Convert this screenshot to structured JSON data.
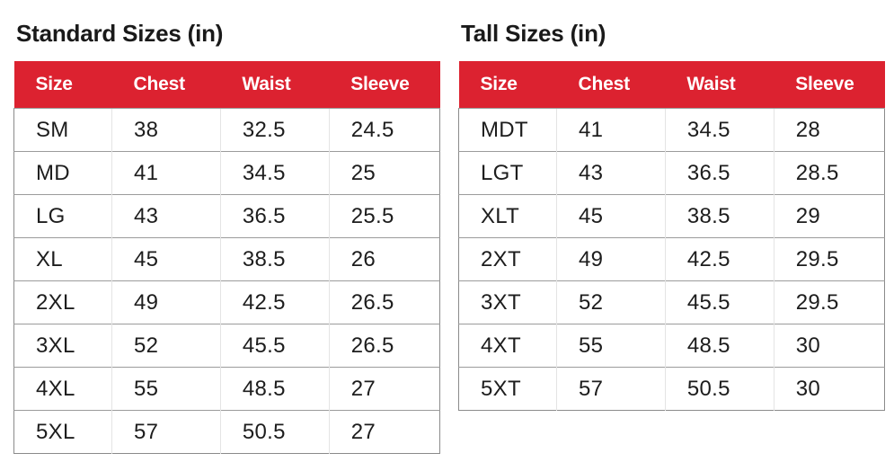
{
  "accent_color": "#dc2230",
  "header_text_color": "#ffffff",
  "body_text_color": "#1d1d1d",
  "chart_data": [
    {
      "type": "table",
      "title": "Standard Sizes (in)",
      "columns": [
        "Size",
        "Chest",
        "Waist",
        "Sleeve"
      ],
      "rows": [
        [
          "SM",
          "38",
          "32.5",
          "24.5"
        ],
        [
          "MD",
          "41",
          "34.5",
          "25"
        ],
        [
          "LG",
          "43",
          "36.5",
          "25.5"
        ],
        [
          "XL",
          "45",
          "38.5",
          "26"
        ],
        [
          "2XL",
          "49",
          "42.5",
          "26.5"
        ],
        [
          "3XL",
          "52",
          "45.5",
          "26.5"
        ],
        [
          "4XL",
          "55",
          "48.5",
          "27"
        ],
        [
          "5XL",
          "57",
          "50.5",
          "27"
        ]
      ]
    },
    {
      "type": "table",
      "title": "Tall Sizes (in)",
      "columns": [
        "Size",
        "Chest",
        "Waist",
        "Sleeve"
      ],
      "rows": [
        [
          "MDT",
          "41",
          "34.5",
          "28"
        ],
        [
          "LGT",
          "43",
          "36.5",
          "28.5"
        ],
        [
          "XLT",
          "45",
          "38.5",
          "29"
        ],
        [
          "2XT",
          "49",
          "42.5",
          "29.5"
        ],
        [
          "3XT",
          "52",
          "45.5",
          "29.5"
        ],
        [
          "4XT",
          "55",
          "48.5",
          "30"
        ],
        [
          "5XT",
          "57",
          "50.5",
          "30"
        ]
      ]
    }
  ]
}
